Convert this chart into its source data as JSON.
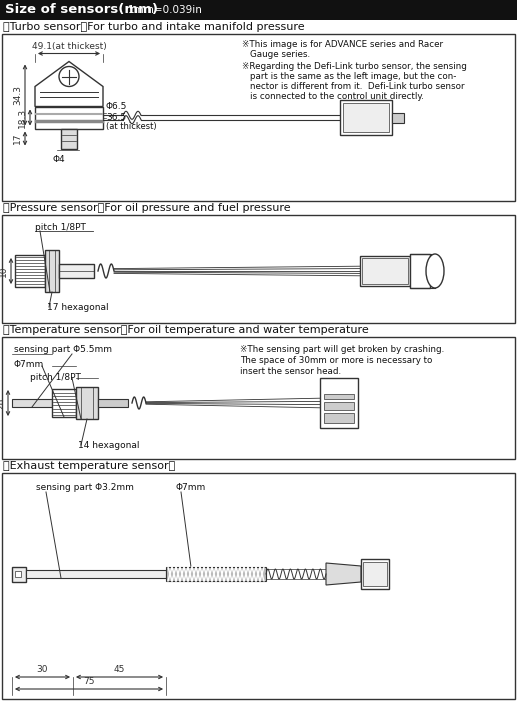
{
  "title": "Size of sensors(mm)",
  "title_sub": "1mm=0.039in",
  "bg_color": "#ffffff",
  "header_bg": "#111111",
  "header_text_color": "#ffffff",
  "line_color": "#333333",
  "section1_title": "【Turbo sensor】For turbo and intake manifold pressure",
  "section2_title": "【Pressure sensor】For oil pressure and fuel pressure",
  "section3_title": "【Temperature sensor】For oil temperature and water temperature",
  "section4_title": "【Exhaust temperature sensor】",
  "note1_line1": "※This image is for ADVANCE series and Racer",
  "note1_line2": "Gauge series.",
  "note1_line3": "※Regarding the Defi-Link turbo sensor, the sensing",
  "note1_line4": "part is the same as the left image, but the con-",
  "note1_line5": "nector is different from it.  Defi-Link turbo sensor",
  "note1_line6": "is connected to the control unit directly.",
  "note3_line1": "※The sensing part will get broken by crashing.",
  "note3_line2": "The space of 30mm or more is necessary to",
  "note3_line3": "insert the sensor head.",
  "gray1": "#cccccc",
  "gray2": "#aaaaaa",
  "gray3": "#888888",
  "gray4": "#eeeeee",
  "gray5": "#dddddd"
}
